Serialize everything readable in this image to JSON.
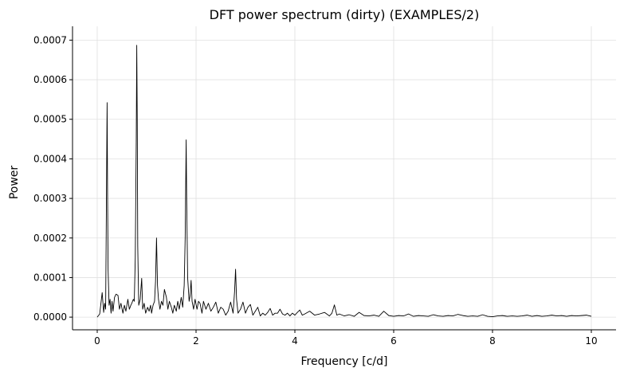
{
  "chart_data": {
    "type": "line",
    "title": "DFT power spectrum (dirty) (EXAMPLES/2)",
    "xlabel": "Frequency [c/d]",
    "ylabel": "Power",
    "xlim": [
      -0.5,
      10.5
    ],
    "ylim": [
      -3.2e-05,
      0.000735
    ],
    "grid": true,
    "colors": {
      "line": "#000000",
      "grid": "#e0e0e0",
      "axis": "#000000"
    },
    "x_ticks": [
      {
        "value": 0,
        "label": "0"
      },
      {
        "value": 2,
        "label": "2"
      },
      {
        "value": 4,
        "label": "4"
      },
      {
        "value": 6,
        "label": "6"
      },
      {
        "value": 8,
        "label": "8"
      },
      {
        "value": 10,
        "label": "10"
      }
    ],
    "y_ticks": [
      {
        "value": 0.0,
        "label": "0.0000"
      },
      {
        "value": 0.0001,
        "label": "0.0001"
      },
      {
        "value": 0.0002,
        "label": "0.0002"
      },
      {
        "value": 0.0003,
        "label": "0.0003"
      },
      {
        "value": 0.0004,
        "label": "0.0004"
      },
      {
        "value": 0.0005,
        "label": "0.0005"
      },
      {
        "value": 0.0006,
        "label": "0.0006"
      },
      {
        "value": 0.0007,
        "label": "0.0007"
      }
    ],
    "series": [
      {
        "color": "#000000",
        "points": [
          [
            0.0,
            0.0
          ],
          [
            0.05,
            8e-06
          ],
          [
            0.1,
            6.2e-05
          ],
          [
            0.13,
            1.2e-05
          ],
          [
            0.15,
            3.5e-05
          ],
          [
            0.17,
            2e-05
          ],
          [
            0.18,
            0.00018
          ],
          [
            0.2,
            0.000542
          ],
          [
            0.21,
            0.0003
          ],
          [
            0.22,
            0.00012
          ],
          [
            0.24,
            3e-05
          ],
          [
            0.26,
            4.5e-05
          ],
          [
            0.28,
            1e-05
          ],
          [
            0.3,
            4e-05
          ],
          [
            0.32,
            1.5e-05
          ],
          [
            0.35,
            5e-05
          ],
          [
            0.38,
            5.8e-05
          ],
          [
            0.42,
            5.5e-05
          ],
          [
            0.45,
            2e-05
          ],
          [
            0.48,
            3.5e-05
          ],
          [
            0.52,
            1e-05
          ],
          [
            0.55,
            3e-05
          ],
          [
            0.58,
            1.5e-05
          ],
          [
            0.62,
            4.5e-05
          ],
          [
            0.65,
            2e-05
          ],
          [
            0.68,
            3e-05
          ],
          [
            0.7,
            3.5e-05
          ],
          [
            0.73,
            4.5e-05
          ],
          [
            0.75,
            4e-05
          ],
          [
            0.77,
            0.00015
          ],
          [
            0.79,
            0.00045
          ],
          [
            0.8,
            0.000687
          ],
          [
            0.81,
            0.0005
          ],
          [
            0.82,
            0.00018
          ],
          [
            0.84,
            3e-05
          ],
          [
            0.87,
            4.5e-05
          ],
          [
            0.9,
            9.8e-05
          ],
          [
            0.92,
            2e-05
          ],
          [
            0.95,
            3.5e-05
          ],
          [
            0.98,
            1e-05
          ],
          [
            1.02,
            2.5e-05
          ],
          [
            1.05,
            1.5e-05
          ],
          [
            1.08,
            3e-05
          ],
          [
            1.1,
            1e-05
          ],
          [
            1.13,
            3e-05
          ],
          [
            1.16,
            4e-05
          ],
          [
            1.18,
            9e-05
          ],
          [
            1.2,
            0.0002
          ],
          [
            1.22,
            8e-05
          ],
          [
            1.24,
            4.5e-05
          ],
          [
            1.27,
            2e-05
          ],
          [
            1.3,
            4e-05
          ],
          [
            1.33,
            3e-05
          ],
          [
            1.36,
            7e-05
          ],
          [
            1.4,
            5e-05
          ],
          [
            1.43,
            2e-05
          ],
          [
            1.46,
            4e-05
          ],
          [
            1.5,
            2.5e-05
          ],
          [
            1.53,
            1e-05
          ],
          [
            1.56,
            3e-05
          ],
          [
            1.6,
            1.5e-05
          ],
          [
            1.63,
            4e-05
          ],
          [
            1.66,
            2e-05
          ],
          [
            1.7,
            5e-05
          ],
          [
            1.73,
            2.5e-05
          ],
          [
            1.76,
            8e-05
          ],
          [
            1.78,
            0.0002
          ],
          [
            1.8,
            0.000448
          ],
          [
            1.81,
            0.0003
          ],
          [
            1.83,
            0.0001
          ],
          [
            1.86,
            4e-05
          ],
          [
            1.88,
            5.5e-05
          ],
          [
            1.9,
            9.3e-05
          ],
          [
            1.92,
            4e-05
          ],
          [
            1.95,
            2e-05
          ],
          [
            1.98,
            4.5e-05
          ],
          [
            2.02,
            2e-05
          ],
          [
            2.05,
            4e-05
          ],
          [
            2.08,
            3.5e-05
          ],
          [
            2.12,
            1e-05
          ],
          [
            2.15,
            4e-05
          ],
          [
            2.2,
            2e-05
          ],
          [
            2.25,
            3.5e-05
          ],
          [
            2.3,
            1.5e-05
          ],
          [
            2.35,
            2.5e-05
          ],
          [
            2.4,
            3.8e-05
          ],
          [
            2.45,
            1e-05
          ],
          [
            2.5,
            2.5e-05
          ],
          [
            2.55,
            2e-05
          ],
          [
            2.6,
            5e-06
          ],
          [
            2.65,
            1.5e-05
          ],
          [
            2.7,
            3.8e-05
          ],
          [
            2.75,
            1e-05
          ],
          [
            2.78,
            6.5e-05
          ],
          [
            2.8,
            0.000121
          ],
          [
            2.82,
            4.5e-05
          ],
          [
            2.85,
            1e-05
          ],
          [
            2.9,
            2e-05
          ],
          [
            2.95,
            3.8e-05
          ],
          [
            3.0,
            1e-05
          ],
          [
            3.05,
            2.5e-05
          ],
          [
            3.1,
            3.2e-05
          ],
          [
            3.15,
            5e-06
          ],
          [
            3.2,
            1.5e-05
          ],
          [
            3.25,
            2.5e-05
          ],
          [
            3.3,
            3e-06
          ],
          [
            3.35,
            1e-05
          ],
          [
            3.4,
            5e-06
          ],
          [
            3.45,
            1.2e-05
          ],
          [
            3.5,
            2.2e-05
          ],
          [
            3.55,
            5e-06
          ],
          [
            3.6,
            1e-05
          ],
          [
            3.65,
            1e-05
          ],
          [
            3.7,
            2e-05
          ],
          [
            3.75,
            8e-06
          ],
          [
            3.8,
            5e-06
          ],
          [
            3.85,
            1e-05
          ],
          [
            3.9,
            3e-06
          ],
          [
            3.95,
            1e-05
          ],
          [
            4.0,
            5e-06
          ],
          [
            4.05,
            1.2e-05
          ],
          [
            4.1,
            1.8e-05
          ],
          [
            4.15,
            5e-06
          ],
          [
            4.2,
            8e-06
          ],
          [
            4.3,
            1.5e-05
          ],
          [
            4.4,
            5e-06
          ],
          [
            4.5,
            8e-06
          ],
          [
            4.6,
            1.2e-05
          ],
          [
            4.7,
            3e-06
          ],
          [
            4.75,
            1e-05
          ],
          [
            4.8,
            3.1e-05
          ],
          [
            4.85,
            5e-06
          ],
          [
            4.9,
            8e-06
          ],
          [
            5.0,
            3e-06
          ],
          [
            5.1,
            6e-06
          ],
          [
            5.2,
            2e-06
          ],
          [
            5.3,
            1.2e-05
          ],
          [
            5.4,
            4e-06
          ],
          [
            5.5,
            3e-06
          ],
          [
            5.6,
            5e-06
          ],
          [
            5.7,
            2e-06
          ],
          [
            5.8,
            1.5e-05
          ],
          [
            5.9,
            4e-06
          ],
          [
            6.0,
            2e-06
          ],
          [
            6.1,
            4e-06
          ],
          [
            6.2,
            3e-06
          ],
          [
            6.3,
            8e-06
          ],
          [
            6.4,
            2e-06
          ],
          [
            6.5,
            4e-06
          ],
          [
            6.6,
            3e-06
          ],
          [
            6.7,
            2e-06
          ],
          [
            6.8,
            6e-06
          ],
          [
            6.9,
            3e-06
          ],
          [
            7.0,
            2e-06
          ],
          [
            7.1,
            4e-06
          ],
          [
            7.2,
            3e-06
          ],
          [
            7.3,
            7e-06
          ],
          [
            7.4,
            4e-06
          ],
          [
            7.5,
            2e-06
          ],
          [
            7.6,
            3e-06
          ],
          [
            7.7,
            2e-06
          ],
          [
            7.8,
            6e-06
          ],
          [
            7.9,
            2e-06
          ],
          [
            8.0,
            1e-06
          ],
          [
            8.1,
            3e-06
          ],
          [
            8.2,
            4e-06
          ],
          [
            8.3,
            2e-06
          ],
          [
            8.4,
            3e-06
          ],
          [
            8.5,
            2e-06
          ],
          [
            8.6,
            3e-06
          ],
          [
            8.7,
            5e-06
          ],
          [
            8.8,
            2e-06
          ],
          [
            8.9,
            4e-06
          ],
          [
            9.0,
            2e-06
          ],
          [
            9.1,
            3e-06
          ],
          [
            9.2,
            5e-06
          ],
          [
            9.3,
            3e-06
          ],
          [
            9.4,
            4e-06
          ],
          [
            9.5,
            2e-06
          ],
          [
            9.6,
            4e-06
          ],
          [
            9.7,
            3e-06
          ],
          [
            9.8,
            4e-06
          ],
          [
            9.9,
            5e-06
          ],
          [
            10.0,
            2e-06
          ]
        ]
      }
    ]
  }
}
